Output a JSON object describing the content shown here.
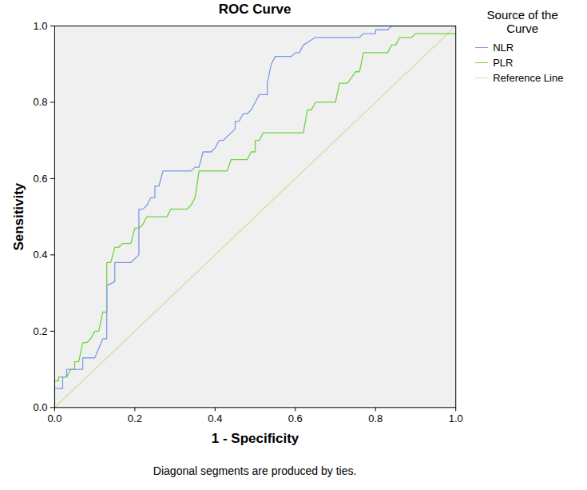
{
  "chart_data": {
    "type": "line",
    "title": "ROC Curve",
    "x_label": "1 - Specificity",
    "y_label": "Sensitivity",
    "legend_title": "Source of the Curve",
    "legend": "right",
    "caption": "Diagonal segments are produced by ties.",
    "grid": false,
    "xlim": [
      0,
      1
    ],
    "ylim": [
      0,
      1
    ],
    "xticks": [
      {
        "value": 0,
        "label": "0.0"
      },
      {
        "value": 0.2,
        "label": "0.2"
      },
      {
        "value": 0.4,
        "label": "0.4"
      },
      {
        "value": 0.6,
        "label": "0.6"
      },
      {
        "value": 0.8,
        "label": "0.8"
      },
      {
        "value": 1,
        "label": "1.0"
      }
    ],
    "yticks": [
      {
        "value": 0,
        "label": "0.0"
      },
      {
        "value": 0.2,
        "label": "0.2"
      },
      {
        "value": 0.4,
        "label": "0.4"
      },
      {
        "value": 0.6,
        "label": "0.6"
      },
      {
        "value": 0.8,
        "label": "0.8"
      },
      {
        "value": 1,
        "label": "1.0"
      }
    ],
    "series": [
      {
        "name": "NLR",
        "color": "#7c9be4",
        "line_style": "solid",
        "x": [
          0,
          0,
          0.02,
          0.02,
          0.03,
          0.03,
          0.07,
          0.07,
          0.1,
          0.12,
          0.13,
          0.13,
          0.15,
          0.15,
          0.19,
          0.21,
          0.21,
          0.22,
          0.23,
          0.24,
          0.25,
          0.25,
          0.26,
          0.27,
          0.34,
          0.35,
          0.36,
          0.37,
          0.39,
          0.4,
          0.41,
          0.42,
          0.45,
          0.45,
          0.46,
          0.47,
          0.48,
          0.49,
          0.5,
          0.51,
          0.53,
          0.53,
          0.54,
          0.55,
          0.59,
          0.6,
          0.61,
          0.62,
          0.65,
          0.76,
          0.77,
          0.8,
          0.8,
          0.83,
          0.84,
          1.0
        ],
        "values": [
          0,
          0.05,
          0.05,
          0.08,
          0.08,
          0.1,
          0.1,
          0.13,
          0.13,
          0.18,
          0.18,
          0.32,
          0.33,
          0.38,
          0.38,
          0.4,
          0.52,
          0.52,
          0.53,
          0.55,
          0.55,
          0.58,
          0.58,
          0.62,
          0.62,
          0.63,
          0.63,
          0.67,
          0.67,
          0.68,
          0.7,
          0.7,
          0.73,
          0.75,
          0.75,
          0.77,
          0.77,
          0.78,
          0.8,
          0.82,
          0.82,
          0.85,
          0.9,
          0.92,
          0.92,
          0.93,
          0.93,
          0.95,
          0.97,
          0.97,
          0.98,
          0.98,
          0.99,
          0.99,
          1.0,
          1.0
        ]
      },
      {
        "name": "PLR",
        "color": "#6fd43a",
        "line_style": "solid",
        "x": [
          0,
          0,
          0.01,
          0.01,
          0.03,
          0.04,
          0.05,
          0.05,
          0.06,
          0.07,
          0.08,
          0.09,
          0.1,
          0.11,
          0.12,
          0.13,
          0.13,
          0.14,
          0.15,
          0.16,
          0.17,
          0.19,
          0.2,
          0.21,
          0.22,
          0.23,
          0.28,
          0.29,
          0.33,
          0.34,
          0.35,
          0.36,
          0.43,
          0.44,
          0.48,
          0.49,
          0.5,
          0.5,
          0.51,
          0.52,
          0.62,
          0.63,
          0.64,
          0.65,
          0.7,
          0.71,
          0.73,
          0.75,
          0.76,
          0.77,
          0.83,
          0.84,
          0.85,
          0.86,
          0.89,
          0.9,
          1.0,
          1.0
        ],
        "values": [
          0,
          0.07,
          0.07,
          0.08,
          0.08,
          0.1,
          0.1,
          0.12,
          0.12,
          0.17,
          0.17,
          0.18,
          0.2,
          0.2,
          0.25,
          0.25,
          0.38,
          0.38,
          0.42,
          0.42,
          0.43,
          0.43,
          0.47,
          0.47,
          0.48,
          0.5,
          0.5,
          0.52,
          0.52,
          0.53,
          0.55,
          0.62,
          0.62,
          0.65,
          0.65,
          0.67,
          0.67,
          0.7,
          0.7,
          0.72,
          0.72,
          0.78,
          0.78,
          0.8,
          0.8,
          0.85,
          0.85,
          0.88,
          0.88,
          0.93,
          0.93,
          0.95,
          0.95,
          0.97,
          0.97,
          0.98,
          0.98,
          1.0
        ]
      },
      {
        "name": "Reference Line",
        "color": "#d9dca0",
        "line_style": "solid",
        "x": [
          0,
          1
        ],
        "values": [
          0,
          1
        ]
      }
    ]
  }
}
